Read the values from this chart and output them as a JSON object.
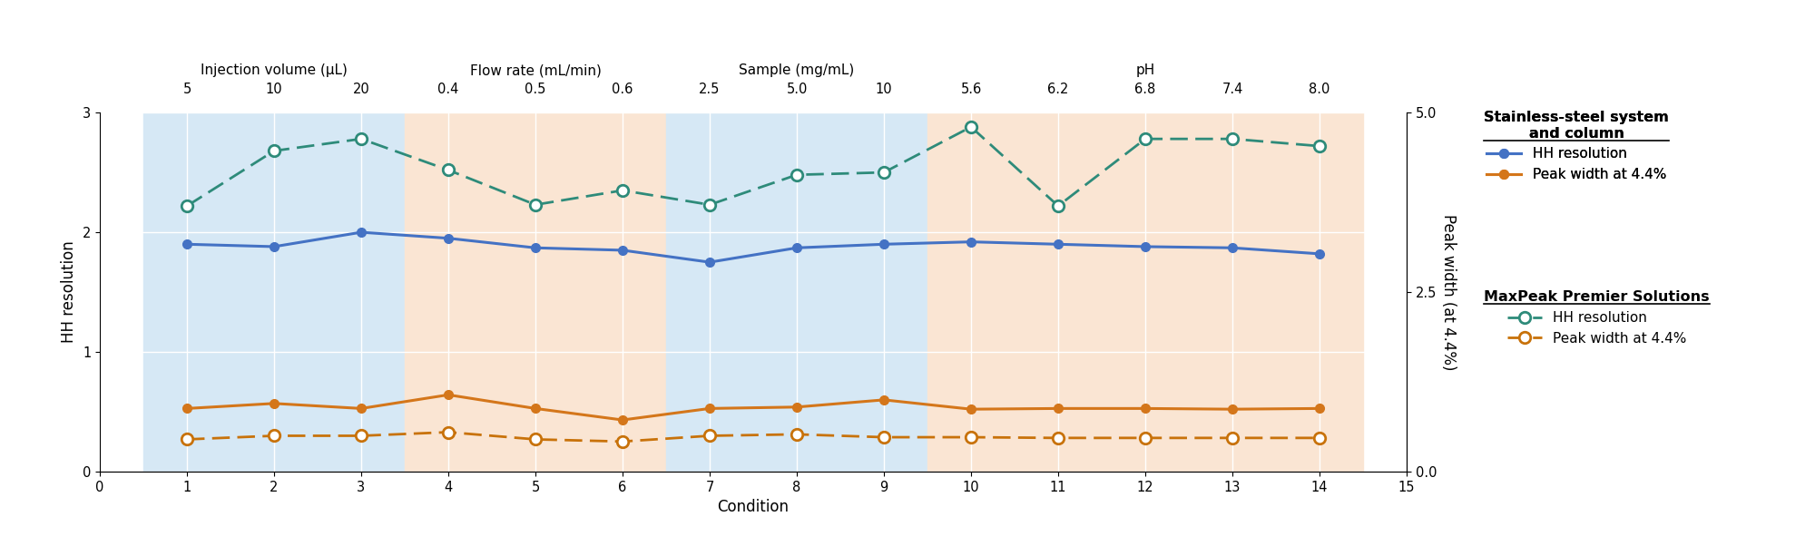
{
  "x": [
    1,
    2,
    3,
    4,
    5,
    6,
    7,
    8,
    9,
    10,
    11,
    12,
    13,
    14
  ],
  "ss_hh_resolution": [
    1.9,
    1.88,
    2.0,
    1.95,
    1.87,
    1.85,
    1.75,
    1.87,
    1.9,
    1.92,
    1.9,
    1.88,
    1.87,
    1.82
  ],
  "ss_peak_width": [
    0.88,
    0.95,
    0.88,
    1.07,
    0.88,
    0.72,
    0.88,
    0.9,
    1.0,
    0.87,
    0.88,
    0.88,
    0.87,
    0.88
  ],
  "mp_hh_resolution": [
    2.22,
    2.68,
    2.78,
    2.52,
    2.23,
    2.35,
    2.23,
    2.48,
    2.5,
    2.88,
    2.22,
    2.78,
    2.78,
    2.72
  ],
  "mp_peak_width": [
    0.45,
    0.5,
    0.5,
    0.55,
    0.45,
    0.42,
    0.5,
    0.52,
    0.48,
    0.48,
    0.47,
    0.47,
    0.47,
    0.47
  ],
  "ss_hh_color": "#4472C4",
  "mp_hh_color": "#2E8B7A",
  "ss_pw_color": "#D4761A",
  "mp_pw_color": "#C8720A",
  "bg_regions": [
    {
      "x_start": 0.5,
      "x_end": 3.5,
      "color": "#D6E8F5"
    },
    {
      "x_start": 3.5,
      "x_end": 6.5,
      "color": "#FAE5D3"
    },
    {
      "x_start": 6.5,
      "x_end": 9.5,
      "color": "#D6E8F5"
    },
    {
      "x_start": 9.5,
      "x_end": 14.5,
      "color": "#FAE5D3"
    }
  ],
  "xlim": [
    0,
    15
  ],
  "ylim_left": [
    0,
    3
  ],
  "ylim_right": [
    0,
    5
  ],
  "xlabel": "Condition",
  "ylabel_left": "HH resolution",
  "ylabel_right": "Peak width (at 4.4%)",
  "top_categories": [
    {
      "text": "Injection volume (μL)",
      "x_center": 2.0
    },
    {
      "text": "Flow rate (mL/min)",
      "x_center": 5.0
    },
    {
      "text": "Sample (mg/mL)",
      "x_center": 8.0
    },
    {
      "text": "pH",
      "x_center": 12.0
    }
  ],
  "top_sublabels": [
    {
      "text": "5",
      "x": 1
    },
    {
      "text": "10",
      "x": 2
    },
    {
      "text": "20",
      "x": 3
    },
    {
      "text": "0.4",
      "x": 4
    },
    {
      "text": "0.5",
      "x": 5
    },
    {
      "text": "0.6",
      "x": 6
    },
    {
      "text": "2.5",
      "x": 7
    },
    {
      "text": "5.0",
      "x": 8
    },
    {
      "text": "10",
      "x": 9
    },
    {
      "text": "5.6",
      "x": 10
    },
    {
      "text": "6.2",
      "x": 11
    },
    {
      "text": "6.8",
      "x": 12
    },
    {
      "text": "7.4",
      "x": 13
    },
    {
      "text": "8.0",
      "x": 14
    }
  ],
  "legend_ss_title": "Stainless-steel system\nand column",
  "legend_mp_title": "MaxPeak Premier Solutions",
  "legend_hh": "HH resolution",
  "legend_pw": "Peak width at 4.4%"
}
